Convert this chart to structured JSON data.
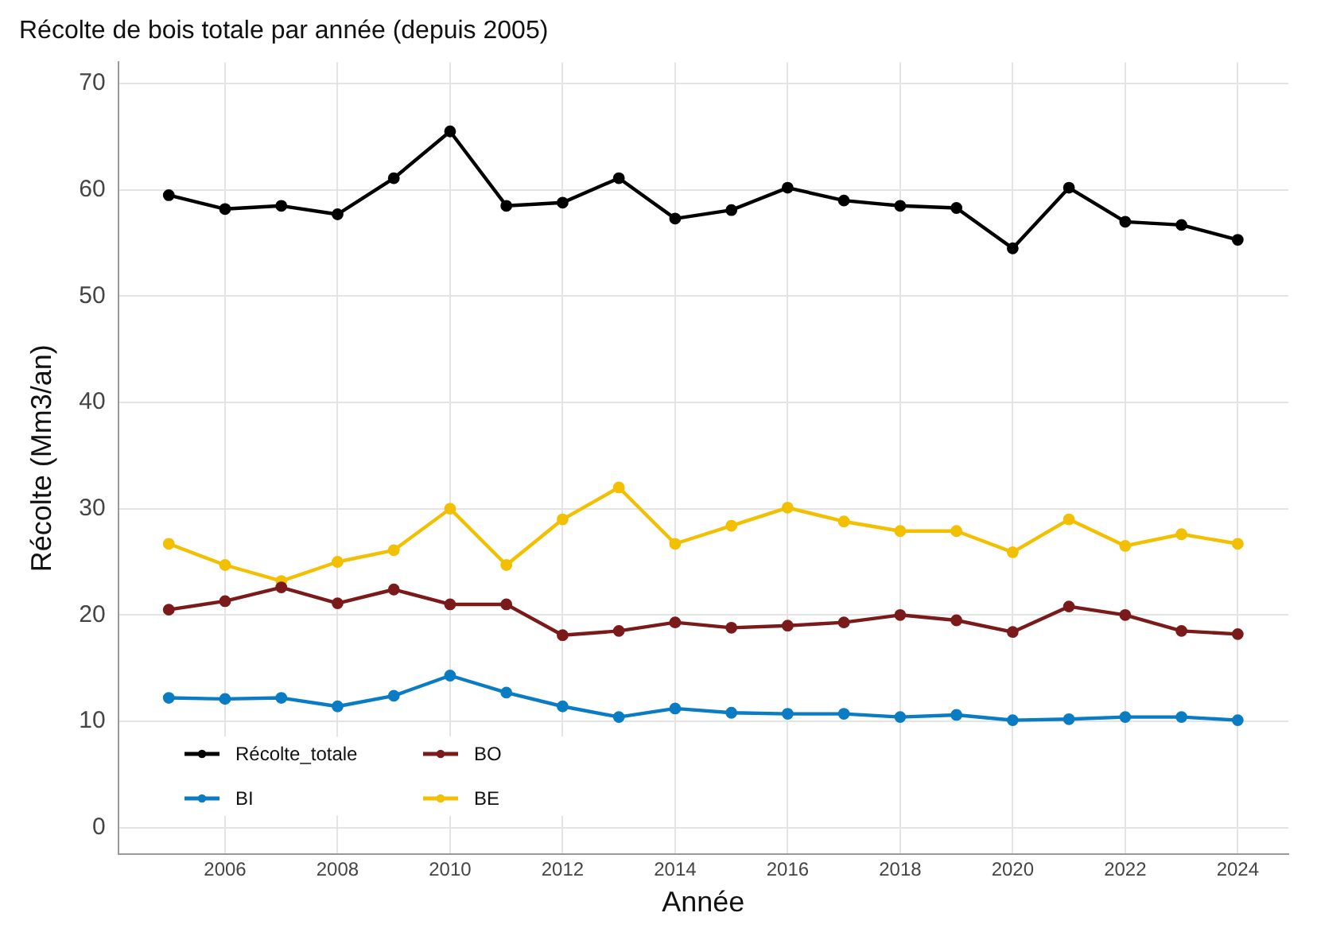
{
  "chart_data": {
    "type": "line",
    "title": "Récolte de bois totale par année (depuis 2005)",
    "xlabel": "Année",
    "ylabel": "Récolte (Mm3/an)",
    "x": [
      2005,
      2006,
      2007,
      2008,
      2009,
      2010,
      2011,
      2012,
      2013,
      2014,
      2015,
      2016,
      2017,
      2018,
      2019,
      2020,
      2021,
      2022,
      2023,
      2024
    ],
    "series": [
      {
        "name": "Récolte_totale",
        "color": "#000000",
        "values": [
          59.5,
          58.2,
          58.5,
          57.7,
          61.1,
          65.5,
          58.5,
          58.8,
          61.1,
          57.3,
          58.1,
          60.2,
          59.0,
          58.5,
          58.3,
          54.5,
          60.2,
          57.0,
          56.7,
          55.3
        ]
      },
      {
        "name": "BO",
        "color": "#7b1a1a",
        "values": [
          20.5,
          21.3,
          22.6,
          21.1,
          22.4,
          21.0,
          21.0,
          18.1,
          18.5,
          19.3,
          18.8,
          19.0,
          19.3,
          20.0,
          19.5,
          18.4,
          20.8,
          20.0,
          18.5,
          18.2
        ]
      },
      {
        "name": "BI",
        "color": "#0a7cc4",
        "values": [
          12.2,
          12.1,
          12.2,
          11.4,
          12.4,
          14.3,
          12.7,
          11.4,
          10.4,
          11.2,
          10.8,
          10.7,
          10.7,
          10.4,
          10.6,
          10.1,
          10.2,
          10.4,
          10.4,
          10.1
        ]
      },
      {
        "name": "BE",
        "color": "#f2c000",
        "values": [
          26.7,
          24.7,
          23.2,
          25.0,
          26.1,
          30.0,
          24.7,
          29.0,
          32.0,
          26.7,
          28.4,
          30.1,
          28.8,
          27.9,
          27.9,
          25.9,
          29.0,
          26.5,
          27.6,
          26.7
        ]
      }
    ],
    "xlim": [
      2004.1,
      2024.9
    ],
    "xticks": [
      2006,
      2008,
      2010,
      2012,
      2014,
      2016,
      2018,
      2020,
      2022,
      2024
    ],
    "ylim": [
      -2.5,
      72
    ],
    "yticks": [
      0,
      10,
      20,
      30,
      40,
      50,
      60,
      70
    ],
    "grid": true,
    "legend": "bottom left",
    "marker": "circle",
    "line_style": "solid"
  }
}
